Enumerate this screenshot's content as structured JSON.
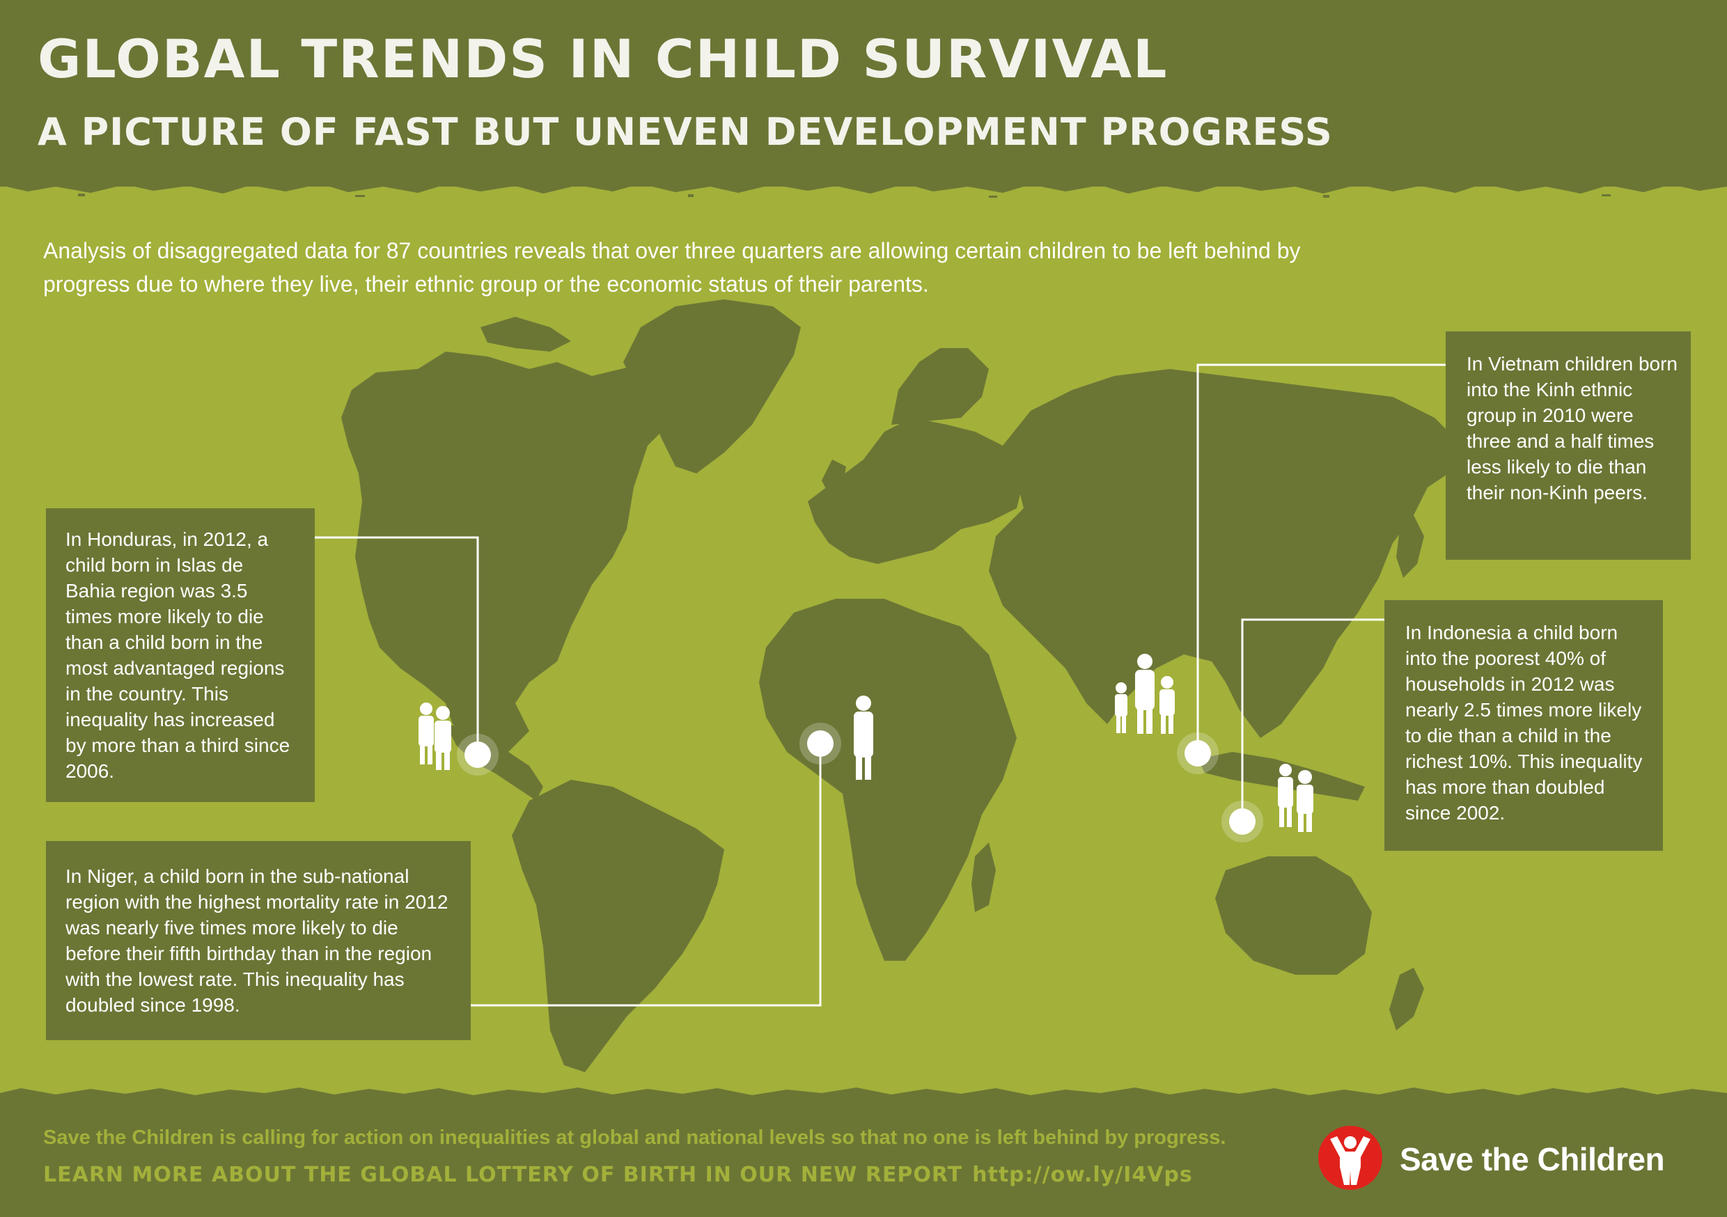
{
  "header": {
    "title": "GLOBAL TRENDS IN CHILD SURVIVAL",
    "subtitle": "A PICTURE OF FAST BUT UNEVEN DEVELOPMENT PROGRESS"
  },
  "intro": "Analysis of disaggregated data for 87 countries reveals that over three quarters are allowing certain children to be left behind by progress due to where they live, their ethnic group or the economic status of their parents.",
  "callouts": {
    "honduras": "In Honduras, in 2012, a child born in Islas de Bahia region was 3.5 times more likely to die than a child born in the most advantaged regions in the country. This inequality has increased by more than a third since 2006.",
    "niger": "In Niger, a child born in the sub-national region with the highest mortality rate in 2012 was nearly five times more likely to die before their fifth birthday than in the region with the lowest rate. This inequality has doubled since 1998.",
    "vietnam": "In Vietnam children born into the Kinh ethnic group in 2010 were three and a half times less likely to die than their non-Kinh peers.",
    "indonesia": "In Indonesia a child born into the poorest 40% of households in 2012 was nearly 2.5 times more likely to die than a child in the richest 10%. This inequality has more than doubled since 2002."
  },
  "footer": {
    "call_to_action": "Save the Children is calling for action on inequalities at global and national levels so that no one is left behind by progress.",
    "report_text": "LEARN MORE ABOUT THE GLOBAL LOTTERY OF BIRTH IN OUR NEW REPORT",
    "report_url": "http://ow.ly/I4Vps"
  },
  "brand": {
    "name": "Save the Children"
  },
  "colors": {
    "background": "#a3b03a",
    "band": "#6b7635",
    "land": "#6b7635",
    "text": "#ffffff",
    "footer_text": "#a3b03a",
    "brand_red": "#e1221c"
  },
  "icons": [
    "map-pin-icon",
    "family-silhouette-icon",
    "save-the-children-logo-icon"
  ]
}
